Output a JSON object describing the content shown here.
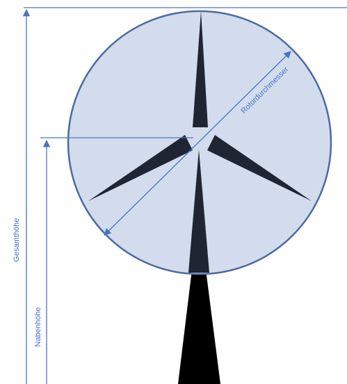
{
  "labels": {
    "rotor_diameter": "Rotordurchmesser",
    "total_height": "Gesamthöhe",
    "hub_height": "Nabenhöhe"
  },
  "colors": {
    "rotor_fill": "#d3dcec",
    "rotor_stroke": "#4a6aa3",
    "dimension_line": "#4a72c4",
    "label_text": "#4a72c4",
    "blade": "#1f2533",
    "tower": "#000000"
  }
}
